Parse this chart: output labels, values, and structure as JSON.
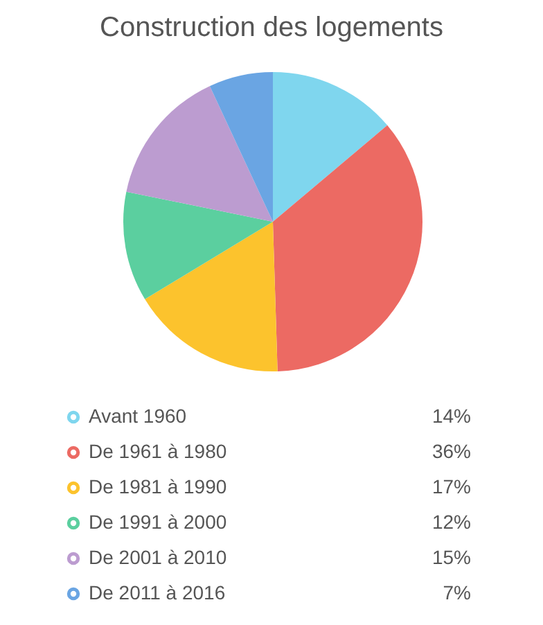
{
  "chart_data": {
    "type": "pie",
    "title": "Construction des logements",
    "categories": [
      "Avant 1960",
      "De 1961 à 1980",
      "De 1981 à 1990",
      "De 1991 à 2000",
      "De 2001 à 2010",
      "De 2011 à 2016"
    ],
    "values": [
      14,
      36,
      17,
      12,
      15,
      7
    ],
    "value_labels": [
      "14%",
      "36%",
      "17%",
      "12%",
      "15%",
      "7%"
    ],
    "colors": [
      "#7fd6ee",
      "#ec6a63",
      "#fcc32d",
      "#5bcf9f",
      "#bc9cd0",
      "#6aa5e3"
    ],
    "legend": "bottom"
  }
}
